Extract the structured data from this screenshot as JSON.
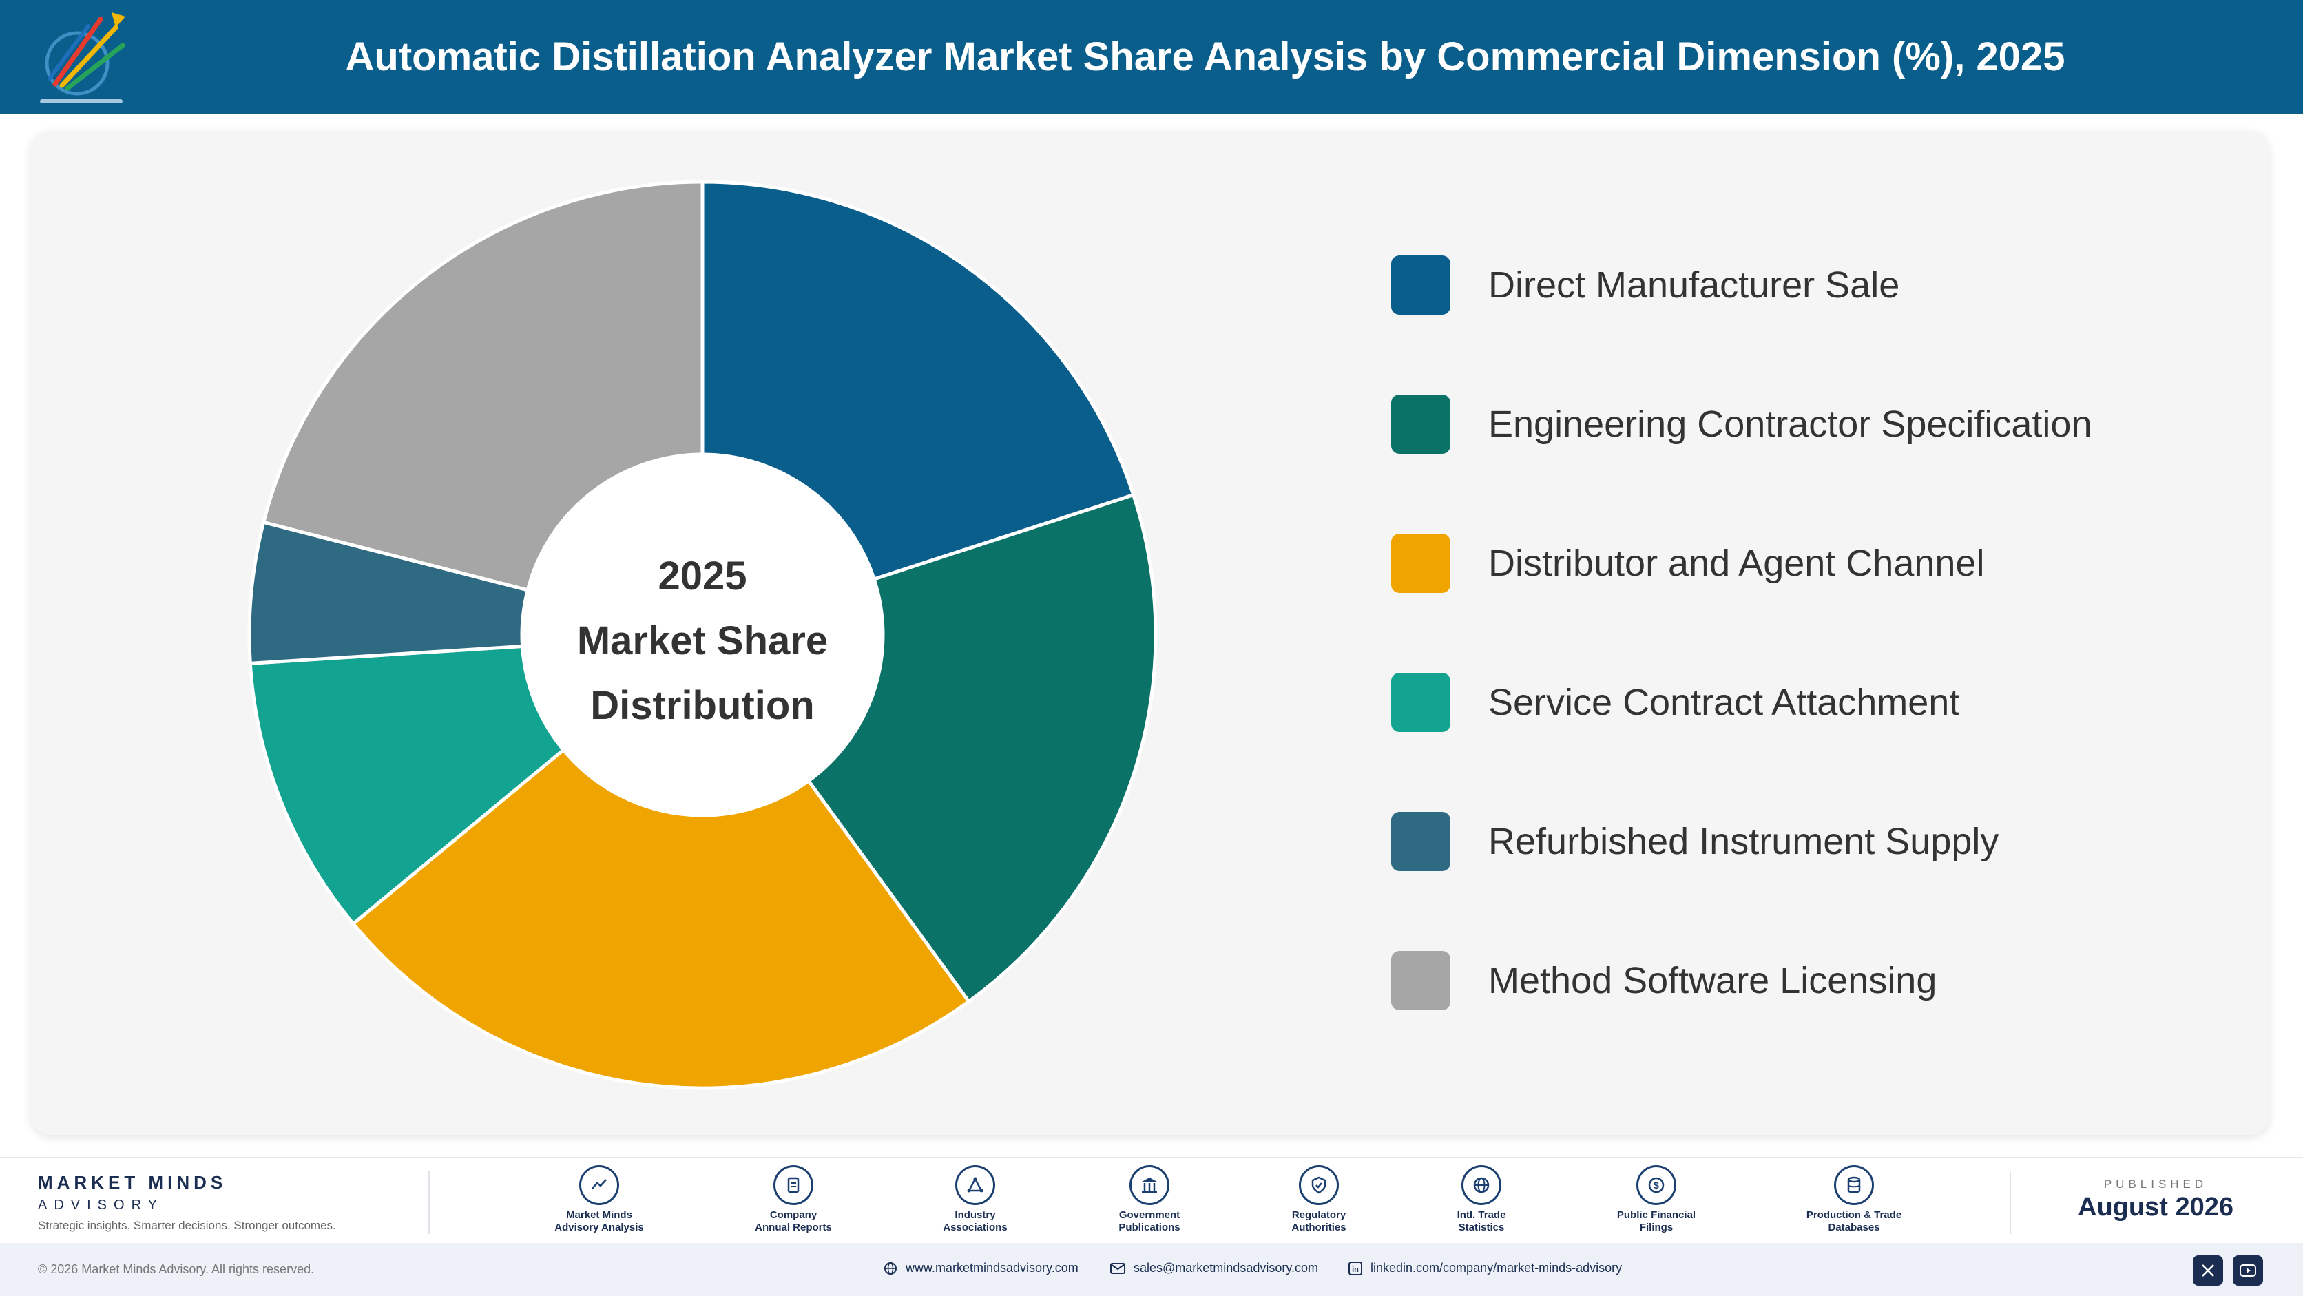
{
  "header": {
    "title": "Automatic Distillation Analyzer Market Share Analysis by Commercial Dimension (%), 2025"
  },
  "chart_data": {
    "type": "pie",
    "title": "Automatic Distillation Analyzer Market Share Analysis by Commercial Dimension (%), 2025",
    "center_label": [
      "2025",
      "Market Share",
      "Distribution"
    ],
    "categories": [
      "Direct Manufacturer Sale",
      "Engineering Contractor Specification",
      "Distributor and Agent Channel",
      "Service Contract Attachment",
      "Refurbished Instrument Supply",
      "Method Software Licensing"
    ],
    "values": [
      20,
      20,
      24,
      10,
      5,
      21
    ],
    "colors": [
      "#0a5e8c",
      "#0b7268",
      "#f0a400",
      "#13a391",
      "#2e6b82",
      "#a6a6a6"
    ],
    "legend_position": "right"
  },
  "footer": {
    "brand_name": "MARKET MINDS",
    "brand_sub": "ADVISORY",
    "tagline": "Strategic insights. Smarter decisions. Stronger outcomes.",
    "sources": [
      {
        "line1": "Market Minds",
        "line2": "Advisory Analysis",
        "icon": "trend-chart-icon"
      },
      {
        "line1": "Company",
        "line2": "Annual Reports",
        "icon": "document-icon"
      },
      {
        "line1": "Industry",
        "line2": "Associations",
        "icon": "network-icon"
      },
      {
        "line1": "Government",
        "line2": "Publications",
        "icon": "government-building-icon"
      },
      {
        "line1": "Regulatory",
        "line2": "Authorities",
        "icon": "shield-check-icon"
      },
      {
        "line1": "Intl. Trade",
        "line2": "Statistics",
        "icon": "globe-icon"
      },
      {
        "line1": "Public Financial",
        "line2": "Filings",
        "icon": "dollar-coin-icon"
      },
      {
        "line1": "Production & Trade",
        "line2": "Databases",
        "icon": "database-icon"
      }
    ],
    "published_label": "PUBLISHED",
    "published_date": "August 2026"
  },
  "bottom_bar": {
    "copyright": "© 2026 Market Minds Advisory. All rights reserved.",
    "website": "www.marketmindsadvisory.com",
    "email": "sales@marketmindsadvisory.com",
    "linkedin": "linkedin.com/company/market-minds-advisory"
  }
}
